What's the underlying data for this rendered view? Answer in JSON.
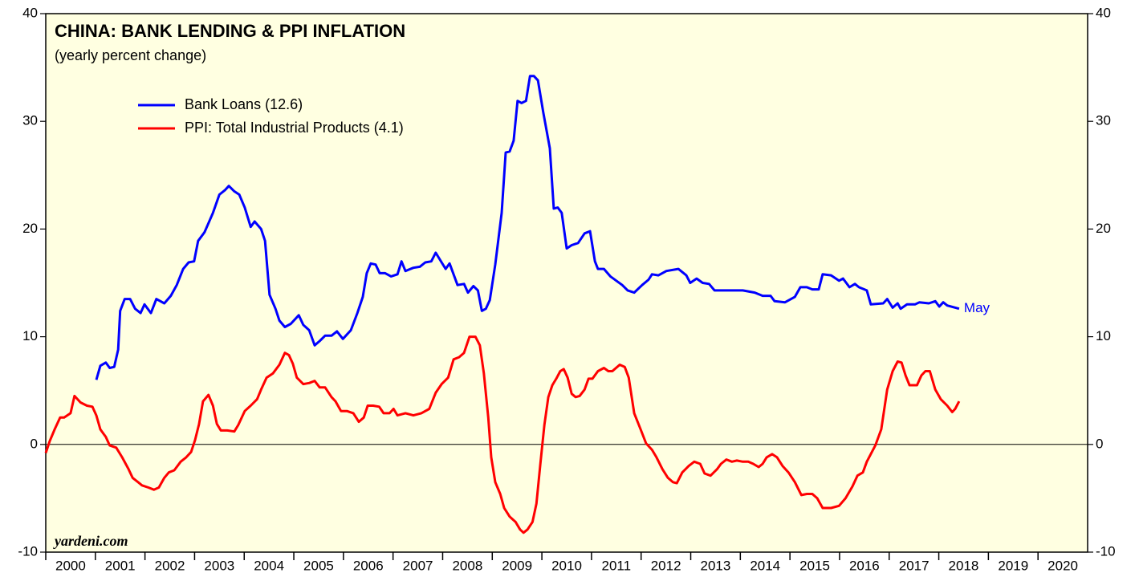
{
  "chart_data": {
    "type": "line",
    "title": "CHINA: BANK LENDING & PPI INFLATION",
    "subtitle": "(yearly percent change)",
    "annotation": "May",
    "source": "yardeni.com",
    "xlim": [
      2000,
      2021
    ],
    "xticks": [
      2000,
      2001,
      2002,
      2003,
      2004,
      2005,
      2006,
      2007,
      2008,
      2009,
      2010,
      2011,
      2012,
      2013,
      2014,
      2015,
      2016,
      2017,
      2018,
      2019,
      2020
    ],
    "ylim": [
      -10,
      40
    ],
    "yticks": [
      -10,
      0,
      10,
      20,
      30,
      40
    ],
    "y2lim": [
      -10,
      40
    ],
    "y2ticks": [
      -10,
      0,
      10,
      20,
      30,
      40
    ],
    "series": [
      {
        "name": "Bank Loans (12.6)",
        "color": "#0000ff",
        "x": [
          2001.02,
          2001.1,
          2001.21,
          2001.29,
          2001.38,
          2001.46,
          2001.5,
          2001.59,
          2001.7,
          2001.8,
          2001.91,
          2001.99,
          2002.12,
          2002.23,
          2002.39,
          2002.52,
          2002.64,
          2002.77,
          2002.88,
          2002.99,
          2003.07,
          2003.2,
          2003.37,
          2003.5,
          2003.61,
          2003.69,
          2003.8,
          2003.9,
          2004.01,
          2004.13,
          2004.21,
          2004.34,
          2004.42,
          2004.51,
          2004.63,
          2004.71,
          2004.82,
          2004.94,
          2005.1,
          2005.19,
          2005.31,
          2005.42,
          2005.52,
          2005.63,
          2005.76,
          2005.87,
          2005.99,
          2006.15,
          2006.28,
          2006.39,
          2006.47,
          2006.55,
          2006.65,
          2006.73,
          2006.84,
          2006.96,
          2007.09,
          2007.17,
          2007.25,
          2007.41,
          2007.54,
          2007.65,
          2007.77,
          2007.86,
          2007.98,
          2008.06,
          2008.14,
          2008.3,
          2008.43,
          2008.51,
          2008.62,
          2008.71,
          2008.79,
          2008.87,
          2008.95,
          2009.06,
          2009.19,
          2009.27,
          2009.35,
          2009.43,
          2009.51,
          2009.59,
          2009.68,
          2009.76,
          2009.84,
          2009.92,
          2010.03,
          2010.16,
          2010.24,
          2010.32,
          2010.4,
          2010.5,
          2010.6,
          2010.73,
          2010.86,
          2010.97,
          2011.07,
          2011.13,
          2011.25,
          2011.38,
          2011.5,
          2011.62,
          2011.73,
          2011.86,
          2012.02,
          2012.15,
          2012.22,
          2012.35,
          2012.51,
          2012.75,
          2012.91,
          2012.99,
          2013.12,
          2013.24,
          2013.37,
          2013.48,
          2013.64,
          2013.8,
          2014.05,
          2014.29,
          2014.45,
          2014.61,
          2014.69,
          2014.9,
          2015.1,
          2015.21,
          2015.34,
          2015.45,
          2015.58,
          2015.66,
          2015.83,
          2015.99,
          2016.07,
          2016.2,
          2016.31,
          2016.39,
          2016.55,
          2016.63,
          2016.88,
          2016.96,
          2017.07,
          2017.17,
          2017.23,
          2017.36,
          2017.52,
          2017.61,
          2017.8,
          2017.93,
          2018.01,
          2018.09,
          2018.17,
          2018.41
        ],
        "values": [
          6.0,
          7.3,
          7.6,
          7.1,
          7.2,
          8.8,
          12.4,
          13.5,
          13.5,
          12.6,
          12.2,
          13.0,
          12.2,
          13.5,
          13.1,
          13.8,
          14.8,
          16.3,
          16.9,
          17.0,
          18.9,
          19.7,
          21.5,
          23.2,
          23.6,
          24.0,
          23.5,
          23.2,
          22.0,
          20.2,
          20.7,
          20.0,
          18.9,
          13.9,
          12.6,
          11.5,
          10.9,
          11.2,
          12.0,
          11.1,
          10.6,
          9.2,
          9.6,
          10.1,
          10.1,
          10.5,
          9.8,
          10.6,
          12.2,
          13.7,
          15.9,
          16.8,
          16.7,
          15.9,
          15.9,
          15.6,
          15.8,
          17.0,
          16.1,
          16.4,
          16.5,
          16.9,
          17.0,
          17.8,
          16.9,
          16.3,
          16.8,
          14.8,
          14.9,
          14.1,
          14.7,
          14.3,
          12.4,
          12.6,
          13.4,
          16.7,
          21.5,
          27.1,
          27.2,
          28.2,
          31.9,
          31.7,
          31.9,
          34.2,
          34.2,
          33.8,
          30.8,
          27.5,
          21.9,
          22.0,
          21.5,
          18.2,
          18.5,
          18.7,
          19.6,
          19.8,
          17.0,
          16.3,
          16.3,
          15.6,
          15.2,
          14.8,
          14.3,
          14.1,
          14.8,
          15.3,
          15.8,
          15.7,
          16.1,
          16.3,
          15.7,
          15.0,
          15.4,
          15.0,
          14.9,
          14.3,
          14.3,
          14.3,
          14.3,
          14.1,
          13.8,
          13.8,
          13.3,
          13.2,
          13.7,
          14.6,
          14.6,
          14.4,
          14.4,
          15.8,
          15.7,
          15.2,
          15.4,
          14.6,
          14.9,
          14.6,
          14.3,
          13.0,
          13.1,
          13.5,
          12.7,
          13.1,
          12.6,
          13.0,
          13.0,
          13.2,
          13.1,
          13.3,
          12.8,
          13.2,
          12.9,
          12.6
        ]
      },
      {
        "name": "PPI: Total Industrial Products (4.1)",
        "color": "#ff0000",
        "x": [
          2000.0,
          2000.08,
          2000.18,
          2000.29,
          2000.37,
          2000.5,
          2000.58,
          2000.7,
          2000.83,
          2000.94,
          2001.02,
          2001.1,
          2001.21,
          2001.29,
          2001.42,
          2001.54,
          2001.67,
          2001.75,
          2001.86,
          2001.94,
          2002.07,
          2002.18,
          2002.28,
          2002.39,
          2002.48,
          2002.59,
          2002.72,
          2002.83,
          2002.93,
          2003.01,
          2003.09,
          2003.17,
          2003.28,
          2003.37,
          2003.45,
          2003.53,
          2003.66,
          2003.8,
          2003.88,
          2004.01,
          2004.13,
          2004.26,
          2004.34,
          2004.45,
          2004.58,
          2004.71,
          2004.82,
          2004.9,
          2004.98,
          2005.06,
          2005.19,
          2005.31,
          2005.42,
          2005.52,
          2005.63,
          2005.76,
          2005.84,
          2005.95,
          2006.07,
          2006.2,
          2006.31,
          2006.41,
          2006.49,
          2006.6,
          2006.72,
          2006.81,
          2006.93,
          2007.01,
          2007.09,
          2007.25,
          2007.41,
          2007.57,
          2007.73,
          2007.86,
          2007.98,
          2008.11,
          2008.22,
          2008.33,
          2008.43,
          2008.54,
          2008.66,
          2008.75,
          2008.83,
          2008.92,
          2008.98,
          2009.06,
          2009.16,
          2009.24,
          2009.35,
          2009.47,
          2009.56,
          2009.63,
          2009.71,
          2009.81,
          2009.89,
          2009.97,
          2010.05,
          2010.13,
          2010.21,
          2010.29,
          2010.37,
          2010.44,
          2010.52,
          2010.6,
          2010.68,
          2010.76,
          2010.86,
          2010.94,
          2011.02,
          2011.13,
          2011.25,
          2011.34,
          2011.42,
          2011.57,
          2011.67,
          2011.75,
          2011.86,
          2011.99,
          2012.1,
          2012.22,
          2012.31,
          2012.43,
          2012.54,
          2012.64,
          2012.72,
          2012.83,
          2012.96,
          2013.07,
          2013.19,
          2013.28,
          2013.4,
          2013.53,
          2013.61,
          2013.72,
          2013.83,
          2013.93,
          2014.05,
          2014.16,
          2014.26,
          2014.37,
          2014.45,
          2014.53,
          2014.64,
          2014.74,
          2014.85,
          2014.97,
          2015.1,
          2015.23,
          2015.34,
          2015.45,
          2015.55,
          2015.66,
          2015.83,
          2015.99,
          2016.12,
          2016.26,
          2016.36,
          2016.47,
          2016.55,
          2016.72,
          2016.84,
          2016.96,
          2017.07,
          2017.17,
          2017.25,
          2017.33,
          2017.41,
          2017.56,
          2017.65,
          2017.73,
          2017.82,
          2017.93,
          2018.04,
          2018.17,
          2018.27,
          2018.33,
          2018.41
        ],
        "values": [
          -0.8,
          0.3,
          1.4,
          2.5,
          2.5,
          2.9,
          4.5,
          3.9,
          3.6,
          3.5,
          2.7,
          1.4,
          0.7,
          -0.1,
          -0.3,
          -1.2,
          -2.3,
          -3.1,
          -3.5,
          -3.8,
          -4.0,
          -4.2,
          -4.0,
          -3.1,
          -2.6,
          -2.4,
          -1.6,
          -1.2,
          -0.7,
          0.4,
          1.9,
          4.0,
          4.6,
          3.6,
          1.9,
          1.3,
          1.3,
          1.2,
          1.8,
          3.1,
          3.6,
          4.2,
          5.1,
          6.2,
          6.6,
          7.4,
          8.5,
          8.3,
          7.5,
          6.2,
          5.6,
          5.7,
          5.9,
          5.3,
          5.3,
          4.4,
          4.0,
          3.1,
          3.1,
          2.9,
          2.1,
          2.5,
          3.6,
          3.6,
          3.5,
          2.9,
          2.9,
          3.3,
          2.7,
          2.9,
          2.7,
          2.9,
          3.3,
          4.8,
          5.6,
          6.2,
          7.9,
          8.1,
          8.5,
          10.0,
          10.0,
          9.2,
          6.6,
          2.5,
          -1.2,
          -3.5,
          -4.6,
          -5.9,
          -6.7,
          -7.2,
          -7.9,
          -8.2,
          -7.9,
          -7.2,
          -5.5,
          -1.8,
          1.8,
          4.4,
          5.5,
          6.1,
          6.8,
          7.0,
          6.2,
          4.7,
          4.4,
          4.5,
          5.1,
          6.1,
          6.1,
          6.8,
          7.1,
          6.8,
          6.8,
          7.4,
          7.2,
          6.2,
          2.9,
          1.4,
          0.1,
          -0.5,
          -1.2,
          -2.3,
          -3.1,
          -3.5,
          -3.6,
          -2.6,
          -2.0,
          -1.6,
          -1.8,
          -2.7,
          -2.9,
          -2.3,
          -1.8,
          -1.4,
          -1.6,
          -1.5,
          -1.6,
          -1.6,
          -1.8,
          -2.1,
          -1.8,
          -1.2,
          -0.9,
          -1.2,
          -2.0,
          -2.6,
          -3.5,
          -4.7,
          -4.6,
          -4.6,
          -5.0,
          -5.9,
          -5.9,
          -5.7,
          -5.0,
          -3.9,
          -2.9,
          -2.6,
          -1.6,
          -0.1,
          1.4,
          5.1,
          6.8,
          7.7,
          7.6,
          6.4,
          5.5,
          5.5,
          6.4,
          6.8,
          6.8,
          5.1,
          4.2,
          3.6,
          3.0,
          3.3,
          4.0
        ]
      }
    ]
  }
}
